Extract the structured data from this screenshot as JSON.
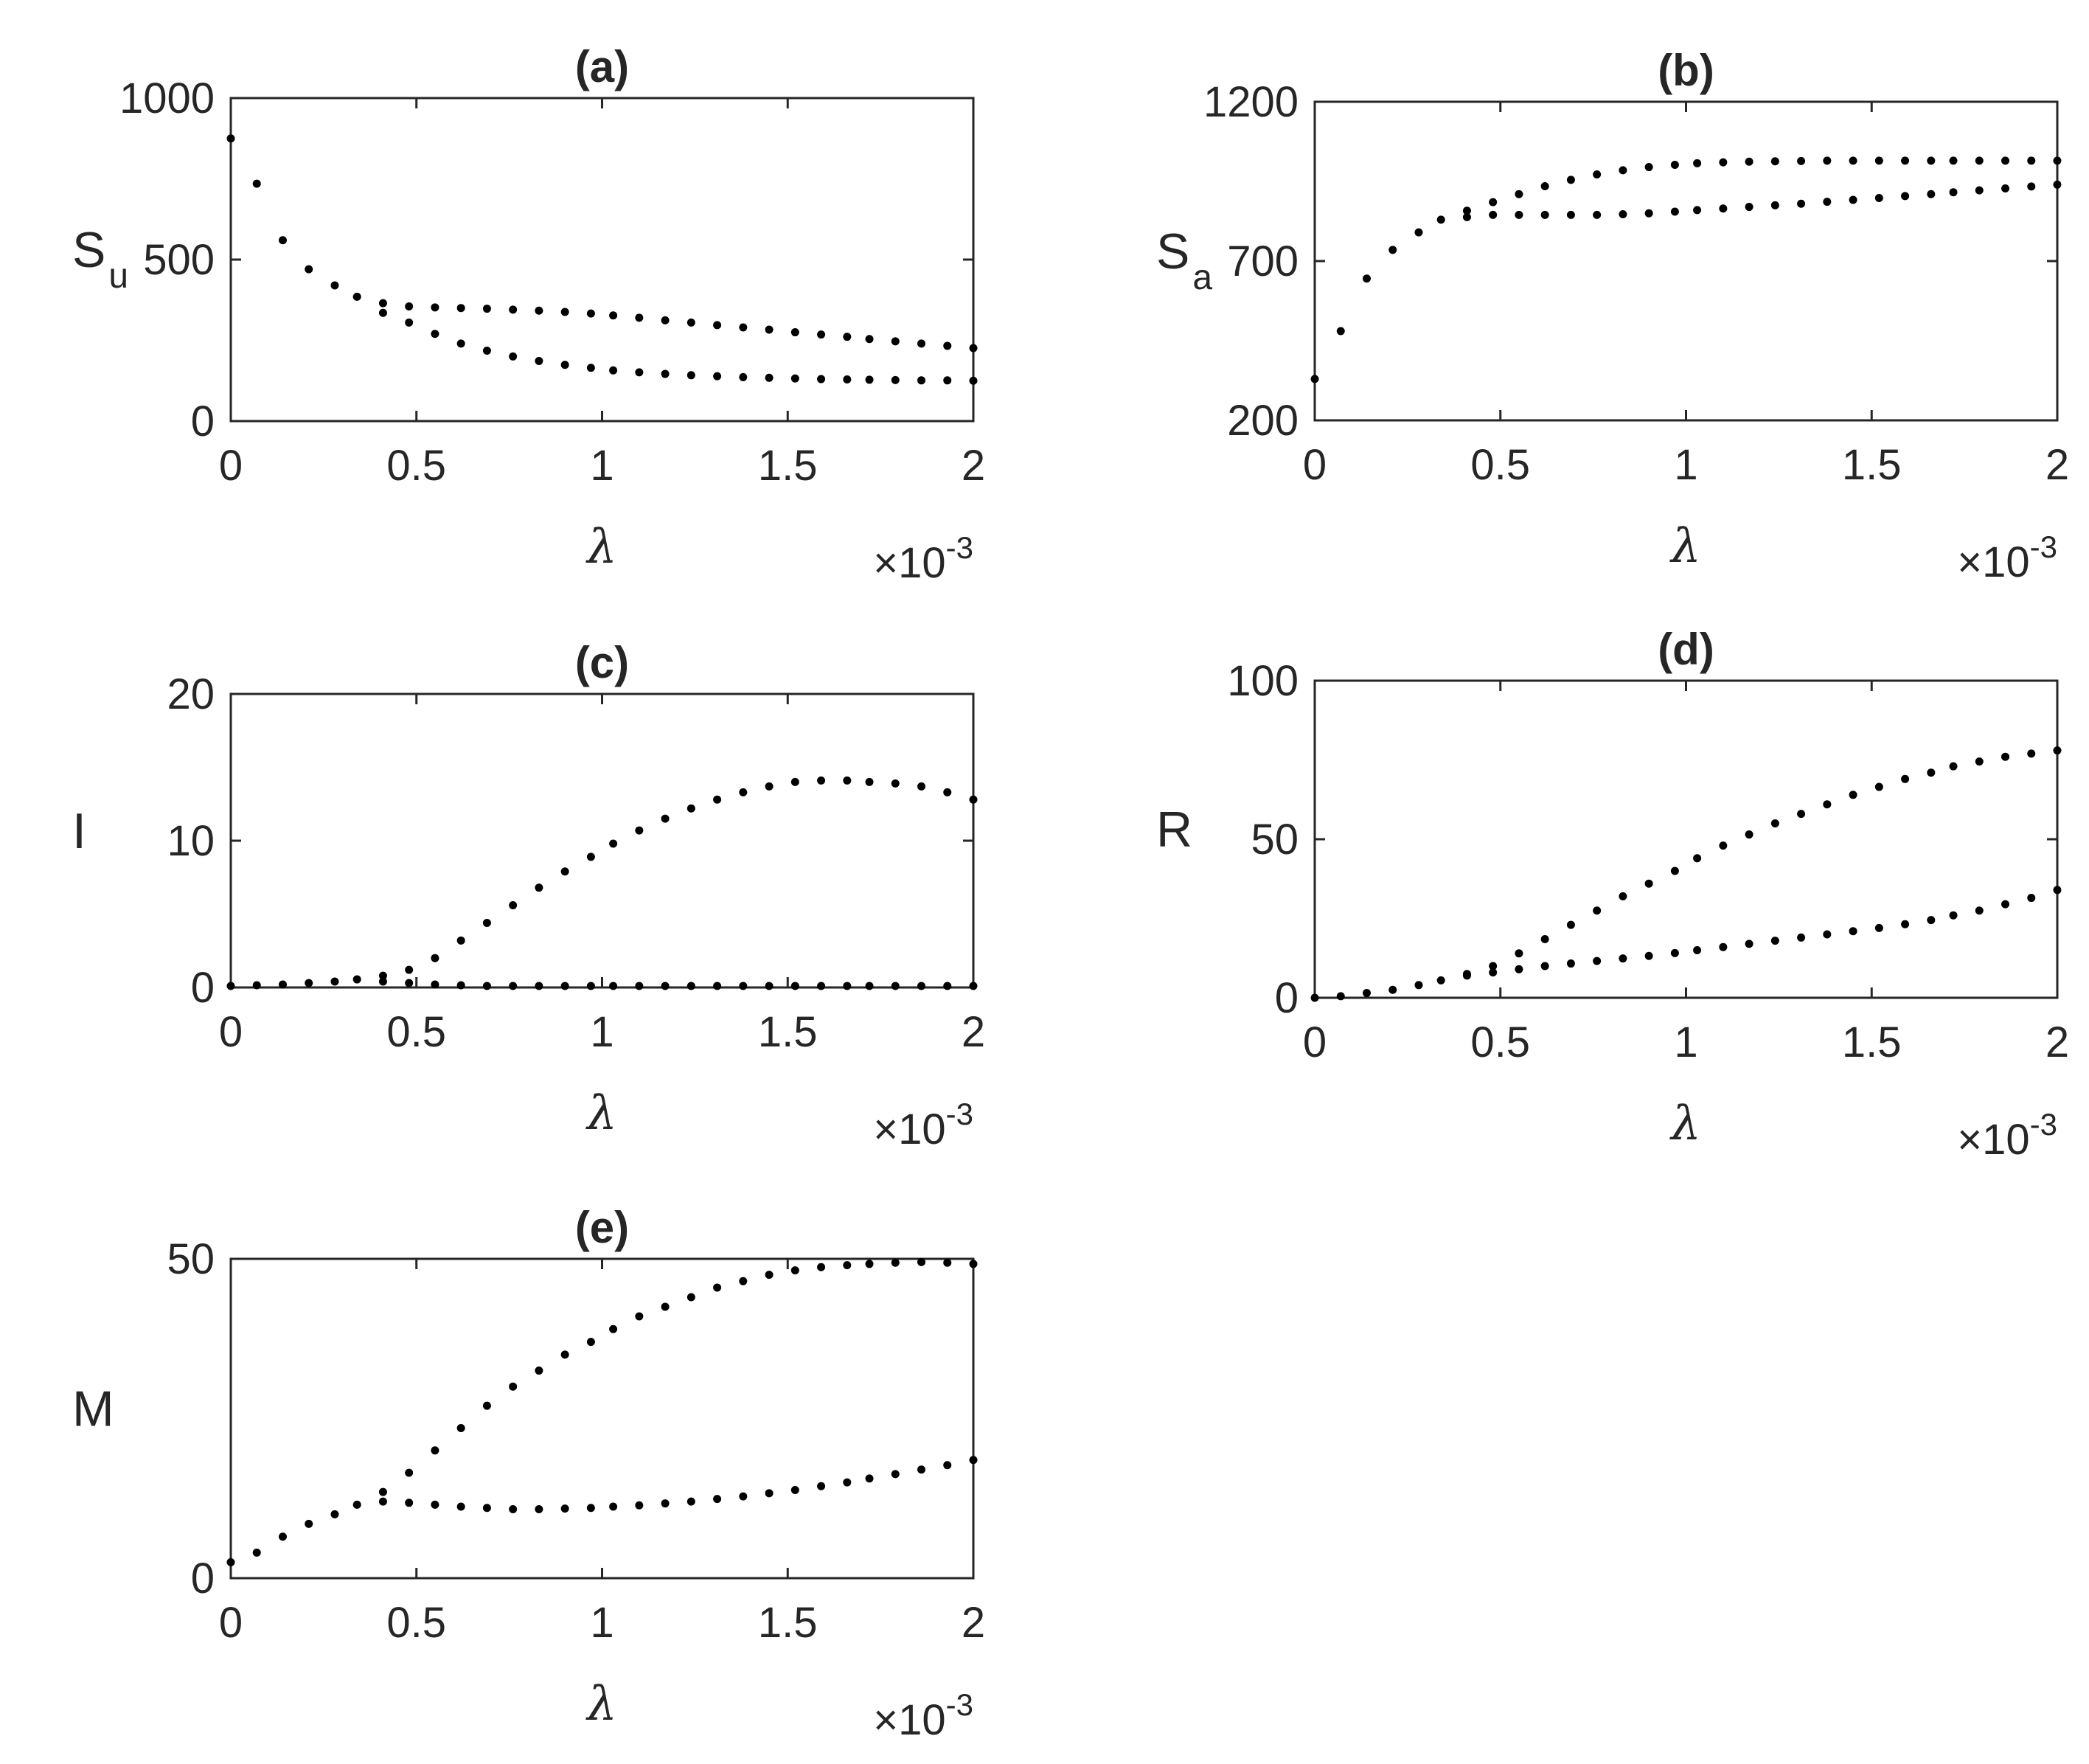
{
  "chart_data": [
    {
      "type": "scatter",
      "title": "(a)",
      "ylabel": "S",
      "ylabel_sub": "u",
      "xlabel": "λ",
      "x_exponent": {
        "base": "×10",
        "power": "-3"
      },
      "xlim": [
        0,
        2
      ],
      "ylim": [
        0,
        1000
      ],
      "x_ticks": [
        "0",
        "0.5",
        "1",
        "1.5",
        "2"
      ],
      "y_ticks": [
        "0",
        "500",
        "1000"
      ],
      "grid": false,
      "series": [
        {
          "x": [
            0,
            0.07,
            0.14,
            0.21,
            0.28,
            0.34,
            0.41,
            0.48,
            0.55,
            0.62,
            0.69,
            0.76,
            0.83,
            0.9,
            0.97,
            1.03,
            1.1,
            1.17,
            1.24,
            1.31,
            1.38,
            1.45,
            1.52,
            1.59,
            1.66,
            1.72,
            1.79,
            1.86,
            1.93,
            2.0
          ],
          "y": [
            875,
            735,
            560,
            470,
            420,
            385,
            365,
            355,
            352,
            350,
            348,
            345,
            342,
            338,
            333,
            327,
            320,
            312,
            305,
            297,
            290,
            283,
            275,
            268,
            261,
            254,
            247,
            240,
            233,
            226
          ]
        },
        {
          "x": [
            0.41,
            0.48,
            0.55,
            0.62,
            0.69,
            0.76,
            0.83,
            0.9,
            0.97,
            1.03,
            1.1,
            1.17,
            1.24,
            1.31,
            1.38,
            1.45,
            1.52,
            1.59,
            1.66,
            1.72,
            1.79,
            1.86,
            1.93,
            2.0
          ],
          "y": [
            335,
            305,
            270,
            240,
            218,
            200,
            186,
            174,
            165,
            157,
            151,
            146,
            142,
            139,
            136,
            134,
            132,
            130,
            129,
            128,
            127,
            126,
            126,
            125
          ]
        }
      ]
    },
    {
      "type": "scatter",
      "title": "(b)",
      "ylabel": "S",
      "ylabel_sub": "a",
      "xlabel": "λ",
      "x_exponent": {
        "base": "×10",
        "power": "-3"
      },
      "xlim": [
        0,
        2
      ],
      "ylim": [
        200,
        1200
      ],
      "x_ticks": [
        "0",
        "0.5",
        "1",
        "1.5",
        "2"
      ],
      "y_ticks": [
        "200",
        "700",
        "1200"
      ],
      "grid": false,
      "series": [
        {
          "x": [
            0,
            0.07,
            0.14,
            0.21,
            0.28,
            0.34,
            0.41,
            0.48,
            0.55,
            0.62,
            0.69,
            0.76,
            0.83,
            0.9,
            0.97,
            1.03,
            1.1,
            1.17,
            1.24,
            1.31,
            1.38,
            1.45,
            1.52,
            1.59,
            1.66,
            1.72,
            1.79,
            1.86,
            1.93,
            2.0
          ],
          "y": [
            330,
            480,
            645,
            735,
            790,
            830,
            858,
            885,
            910,
            935,
            955,
            972,
            985,
            995,
            1002,
            1007,
            1010,
            1012,
            1013,
            1014,
            1015,
            1015,
            1015,
            1015,
            1015,
            1015,
            1015,
            1015,
            1015,
            1015
          ]
        },
        {
          "x": [
            0.41,
            0.48,
            0.55,
            0.62,
            0.69,
            0.76,
            0.83,
            0.9,
            0.97,
            1.03,
            1.1,
            1.17,
            1.24,
            1.31,
            1.38,
            1.45,
            1.52,
            1.59,
            1.66,
            1.72,
            1.79,
            1.86,
            1.93,
            2.0
          ],
          "y": [
            838,
            845,
            845,
            845,
            845,
            845,
            847,
            850,
            855,
            860,
            865,
            870,
            875,
            880,
            886,
            892,
            898,
            904,
            910,
            916,
            922,
            928,
            934,
            940
          ]
        }
      ]
    },
    {
      "type": "scatter",
      "title": "(c)",
      "ylabel": "I",
      "ylabel_sub": "",
      "xlabel": "λ",
      "x_exponent": {
        "base": "×10",
        "power": "-3"
      },
      "xlim": [
        0,
        2
      ],
      "ylim": [
        0,
        20
      ],
      "x_ticks": [
        "0",
        "0.5",
        "1",
        "1.5",
        "2"
      ],
      "y_ticks": [
        "0",
        "10",
        "20"
      ],
      "grid": false,
      "series": [
        {
          "x": [
            0,
            0.07,
            0.14,
            0.21,
            0.28,
            0.34,
            0.41,
            0.48,
            0.55,
            0.62,
            0.69,
            0.76,
            0.83,
            0.9,
            0.97,
            1.03,
            1.1,
            1.17,
            1.24,
            1.31,
            1.38,
            1.45,
            1.52,
            1.59,
            1.66,
            1.72,
            1.79,
            1.86,
            1.93,
            2.0
          ],
          "y": [
            0.1,
            0.15,
            0.2,
            0.3,
            0.4,
            0.55,
            0.8,
            1.2,
            2.0,
            3.2,
            4.4,
            5.6,
            6.8,
            7.9,
            8.9,
            9.8,
            10.7,
            11.5,
            12.2,
            12.8,
            13.3,
            13.7,
            14.0,
            14.1,
            14.1,
            14.0,
            13.9,
            13.7,
            13.3,
            12.8
          ]
        },
        {
          "x": [
            0.41,
            0.48,
            0.55,
            0.62,
            0.69,
            0.76,
            0.83,
            0.9,
            0.97,
            1.03,
            1.1,
            1.17,
            1.24,
            1.31,
            1.38,
            1.45,
            1.52,
            1.59,
            1.66,
            1.72,
            1.79,
            1.86,
            1.93,
            2.0
          ],
          "y": [
            0.4,
            0.3,
            0.2,
            0.15,
            0.1,
            0.1,
            0.1,
            0.1,
            0.1,
            0.1,
            0.1,
            0.1,
            0.1,
            0.1,
            0.1,
            0.1,
            0.1,
            0.1,
            0.1,
            0.1,
            0.1,
            0.1,
            0.1,
            0.1
          ]
        }
      ]
    },
    {
      "type": "scatter",
      "title": "(d)",
      "ylabel": "R",
      "ylabel_sub": "",
      "xlabel": "λ",
      "x_exponent": {
        "base": "×10",
        "power": "-3"
      },
      "xlim": [
        0,
        2
      ],
      "ylim": [
        0,
        100
      ],
      "x_ticks": [
        "0",
        "0.5",
        "1",
        "1.5",
        "2"
      ],
      "y_ticks": [
        "0",
        "50",
        "100"
      ],
      "grid": false,
      "series": [
        {
          "x": [
            0,
            0.07,
            0.14,
            0.21,
            0.28,
            0.34,
            0.41,
            0.48,
            0.55,
            0.62,
            0.69,
            0.76,
            0.83,
            0.9,
            0.97,
            1.03,
            1.1,
            1.17,
            1.24,
            1.31,
            1.38,
            1.45,
            1.52,
            1.59,
            1.66,
            1.72,
            1.79,
            1.86,
            1.93,
            2.0
          ],
          "y": [
            0,
            0.5,
            1.5,
            2.5,
            4,
            5.5,
            7.5,
            10,
            14,
            18.5,
            23,
            27.5,
            32,
            36,
            40,
            44,
            48,
            51.5,
            55,
            58,
            61,
            64,
            66.5,
            69,
            71,
            73,
            74.5,
            76,
            77,
            78
          ]
        },
        {
          "x": [
            0.41,
            0.48,
            0.55,
            0.62,
            0.69,
            0.76,
            0.83,
            0.9,
            0.97,
            1.03,
            1.1,
            1.17,
            1.24,
            1.31,
            1.38,
            1.45,
            1.52,
            1.59,
            1.66,
            1.72,
            1.79,
            1.86,
            1.93,
            2.0
          ],
          "y": [
            7,
            8,
            9,
            10,
            10.8,
            11.6,
            12.4,
            13.2,
            14.1,
            15,
            16,
            17,
            18,
            19,
            20,
            21,
            22,
            23.2,
            24.5,
            26,
            27.5,
            29.5,
            31.5,
            34
          ]
        }
      ]
    },
    {
      "type": "scatter",
      "title": "(e)",
      "ylabel": "M",
      "ylabel_sub": "",
      "xlabel": "λ",
      "x_exponent": {
        "base": "×10",
        "power": "-3"
      },
      "xlim": [
        0,
        2
      ],
      "ylim": [
        0,
        50
      ],
      "x_ticks": [
        "0",
        "0.5",
        "1",
        "1.5",
        "2"
      ],
      "y_ticks": [
        "0",
        "50"
      ],
      "grid": false,
      "series": [
        {
          "x": [
            0,
            0.07,
            0.14,
            0.21,
            0.28,
            0.34,
            0.41,
            0.48,
            0.55,
            0.62,
            0.69,
            0.76,
            0.83,
            0.9,
            0.97,
            1.03,
            1.1,
            1.17,
            1.24,
            1.31,
            1.38,
            1.45,
            1.52,
            1.59,
            1.66,
            1.72,
            1.79,
            1.86,
            1.93,
            2.0
          ],
          "y": [
            2.5,
            4,
            6.5,
            8.5,
            10,
            11.5,
            13.5,
            16.5,
            20,
            23.5,
            27,
            30,
            32.5,
            35,
            37,
            39,
            41,
            42.5,
            44,
            45.5,
            46.5,
            47.5,
            48.2,
            48.7,
            49,
            49.2,
            49.4,
            49.5,
            49.4,
            49.2
          ]
        },
        {
          "x": [
            0.41,
            0.48,
            0.55,
            0.62,
            0.69,
            0.76,
            0.83,
            0.9,
            0.97,
            1.03,
            1.1,
            1.17,
            1.24,
            1.31,
            1.38,
            1.45,
            1.52,
            1.59,
            1.66,
            1.72,
            1.79,
            1.86,
            1.93,
            2.0
          ],
          "y": [
            12,
            11.8,
            11.5,
            11.2,
            11,
            10.8,
            10.8,
            10.9,
            11,
            11.2,
            11.4,
            11.7,
            12,
            12.4,
            12.8,
            13.3,
            13.8,
            14.4,
            15,
            15.6,
            16.3,
            17,
            17.7,
            18.5
          ]
        }
      ]
    }
  ]
}
